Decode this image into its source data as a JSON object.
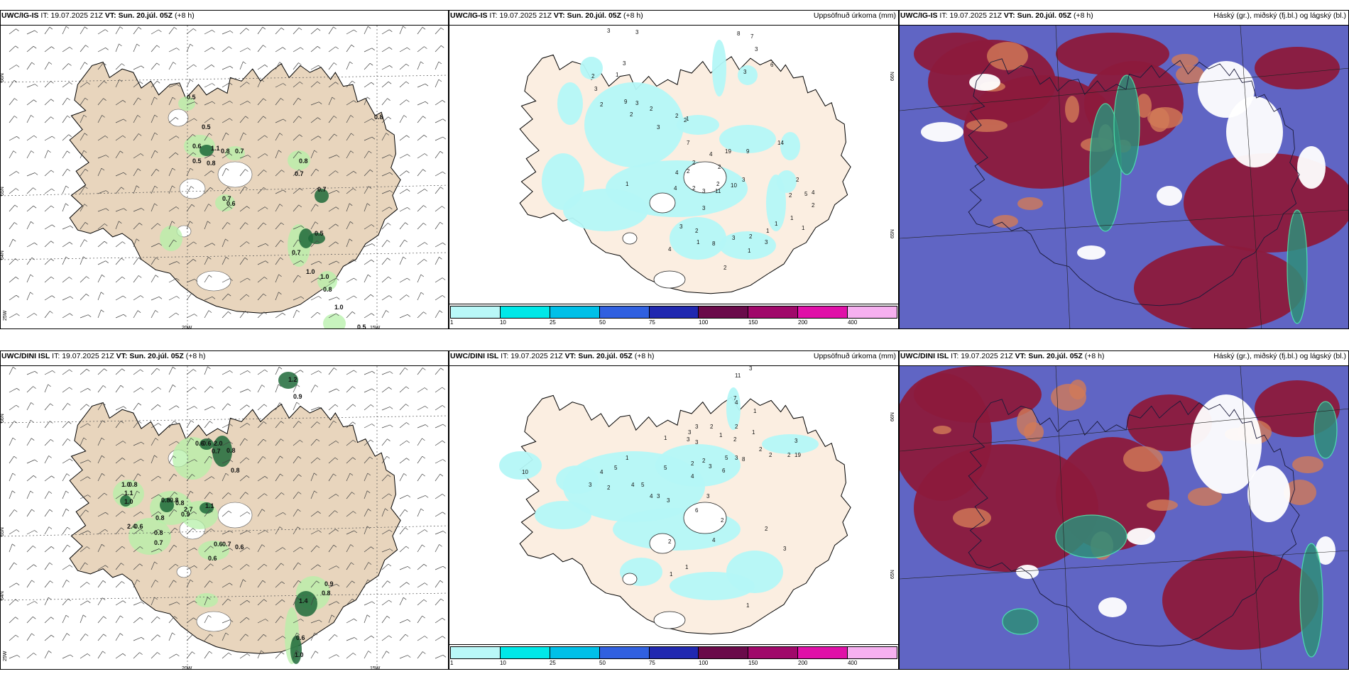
{
  "colors": {
    "land": "#e8d5bd",
    "land_light": "#fbeee1",
    "sea_cloud": "#6065c4",
    "high_cloud": "#8c1a3c",
    "mid_cloud": "#d27a58",
    "low_cloud": "#ffffff",
    "precip": "#b4f7f7",
    "green_light": "#b6f0a8",
    "green_dark": "#1f6a3a",
    "teal": "#2f8e7a"
  },
  "panels": [
    {
      "id": "p1",
      "model": "UWC/IG-IS",
      "it_label": "IT:",
      "it_value": "19.07.2025 21Z",
      "vt_label": "VT:",
      "vt_value": "Sun. 20.júl. 05Z",
      "lead": "(+8 h)",
      "right_title": "",
      "values": [
        "0.5",
        "0.5",
        "0.6",
        "1.1",
        "0.8",
        "0.7",
        "0.5",
        "0.8",
        "0.7",
        "0.6",
        "0.8",
        "0.7",
        "0.7",
        "0.5",
        "0.7",
        "1.0",
        "1.0",
        "0.8",
        "0.8",
        "0.5",
        "0.6",
        "1.0"
      ],
      "lat_labels": [
        "66N",
        "65N",
        "64N"
      ],
      "lon_labels": [
        "25W",
        "20W",
        "15W"
      ]
    },
    {
      "id": "p2",
      "model": "UWC/IG-IS",
      "it_label": "IT:",
      "it_value": "19.07.2025 21Z",
      "vt_label": "VT:",
      "vt_value": "Sun. 20.júl. 05Z",
      "lead": "(+8 h)",
      "right_title": "Uppsöfnuð úrkoma (mm)",
      "values": [
        "3",
        "8",
        "7",
        "6",
        "3",
        "3",
        "3",
        "3",
        "1",
        "2",
        "3",
        "9",
        "2",
        "2",
        "3",
        "2",
        "2",
        "1",
        "3",
        "7",
        "2",
        "2",
        "14",
        "4",
        "19",
        "9",
        "2",
        "2",
        "4",
        "3",
        "2",
        "4",
        "1",
        "10",
        "11",
        "3",
        "2",
        "3",
        "3",
        "2",
        "8",
        "3",
        "1",
        "1",
        "2",
        "2",
        "5",
        "2",
        "4",
        "1",
        "3",
        "2",
        "1",
        "1",
        "2",
        "4",
        "1"
      ],
      "lat_labels": [
        "66N",
        "65N"
      ],
      "legend_labels": [
        "1",
        "10",
        "25",
        "50",
        "75",
        "100",
        "150",
        "200",
        "400"
      ],
      "legend_colors": [
        "#b9f8f8",
        "#00e8e8",
        "#00c0e8",
        "#3060e0",
        "#2028b0",
        "#6a0a4a",
        "#a0086a",
        "#e010a8",
        "#f6b0f0"
      ]
    },
    {
      "id": "p3",
      "model": "UWC/IG-IS",
      "it_label": "IT:",
      "it_value": "19.07.2025 21Z",
      "vt_label": "VT:",
      "vt_value": "Sun. 20.júl. 05Z",
      "lead": "(+8 h)",
      "right_title": "Háský (gr.), miðský (fj.bl.) og lágský (bl.)"
    },
    {
      "id": "p4",
      "model": "UWC/DINI ISL",
      "it_label": "IT:",
      "it_value": "19.07.2025 21Z",
      "vt_label": "VT:",
      "vt_value": "Sun. 20.júl. 05Z",
      "lead": "(+8 h)",
      "right_title": "",
      "values": [
        "1.2",
        "0.9",
        "0.6",
        "0.6",
        "2.0",
        "0.7",
        "0.8",
        "0.8",
        "1.0",
        "0.8",
        "1.1",
        "1.0",
        "0.8",
        "0.8",
        "0.8",
        "1.1",
        "2.7",
        "0.9",
        "0.8",
        "2.4",
        "0.6",
        "0.7",
        "0.8",
        "0.6",
        "0.7",
        "0.6",
        "0.6",
        "0.9",
        "0.8",
        "1.4",
        "0.6",
        "1.0"
      ],
      "lat_labels": [
        "66N",
        "65N",
        "64N"
      ],
      "lon_labels": [
        "25W",
        "20W",
        "15W"
      ]
    },
    {
      "id": "p5",
      "model": "UWC/DINI ISL",
      "it_label": "IT:",
      "it_value": "19.07.2025 21Z",
      "vt_label": "VT:",
      "vt_value": "Sun. 20.júl. 05Z",
      "lead": "(+8 h)",
      "right_title": "Uppsöfnuð úrkoma (mm)",
      "values": [
        "3",
        "11",
        "7",
        "4",
        "1",
        "2",
        "2",
        "3",
        "3",
        "1",
        "1",
        "2",
        "3",
        "2",
        "3",
        "3",
        "19",
        "2",
        "2",
        "3",
        "5",
        "2",
        "6",
        "8",
        "1",
        "2",
        "3",
        "5",
        "1",
        "5",
        "4",
        "10",
        "4",
        "3",
        "3",
        "2",
        "4",
        "5",
        "4",
        "3",
        "3",
        "6",
        "2",
        "4",
        "1",
        "1",
        "2",
        "2",
        "3",
        "1"
      ],
      "lat_labels": [
        "66N",
        "65N"
      ],
      "legend_labels": [
        "1",
        "10",
        "25",
        "50",
        "75",
        "100",
        "150",
        "200",
        "400"
      ],
      "legend_colors": [
        "#b9f8f8",
        "#00e8e8",
        "#00c0e8",
        "#3060e0",
        "#2028b0",
        "#6a0a4a",
        "#a0086a",
        "#e010a8",
        "#f6b0f0"
      ]
    },
    {
      "id": "p6",
      "model": "UWC/DINI ISL",
      "it_label": "IT:",
      "it_value": "19.07.2025 21Z",
      "vt_label": "VT:",
      "vt_value": "Sun. 20.júl. 05Z",
      "lead": "(+8 h)",
      "right_title": "Háský (gr.), miðský (fj.bl.) og lágský (bl.)"
    }
  ]
}
